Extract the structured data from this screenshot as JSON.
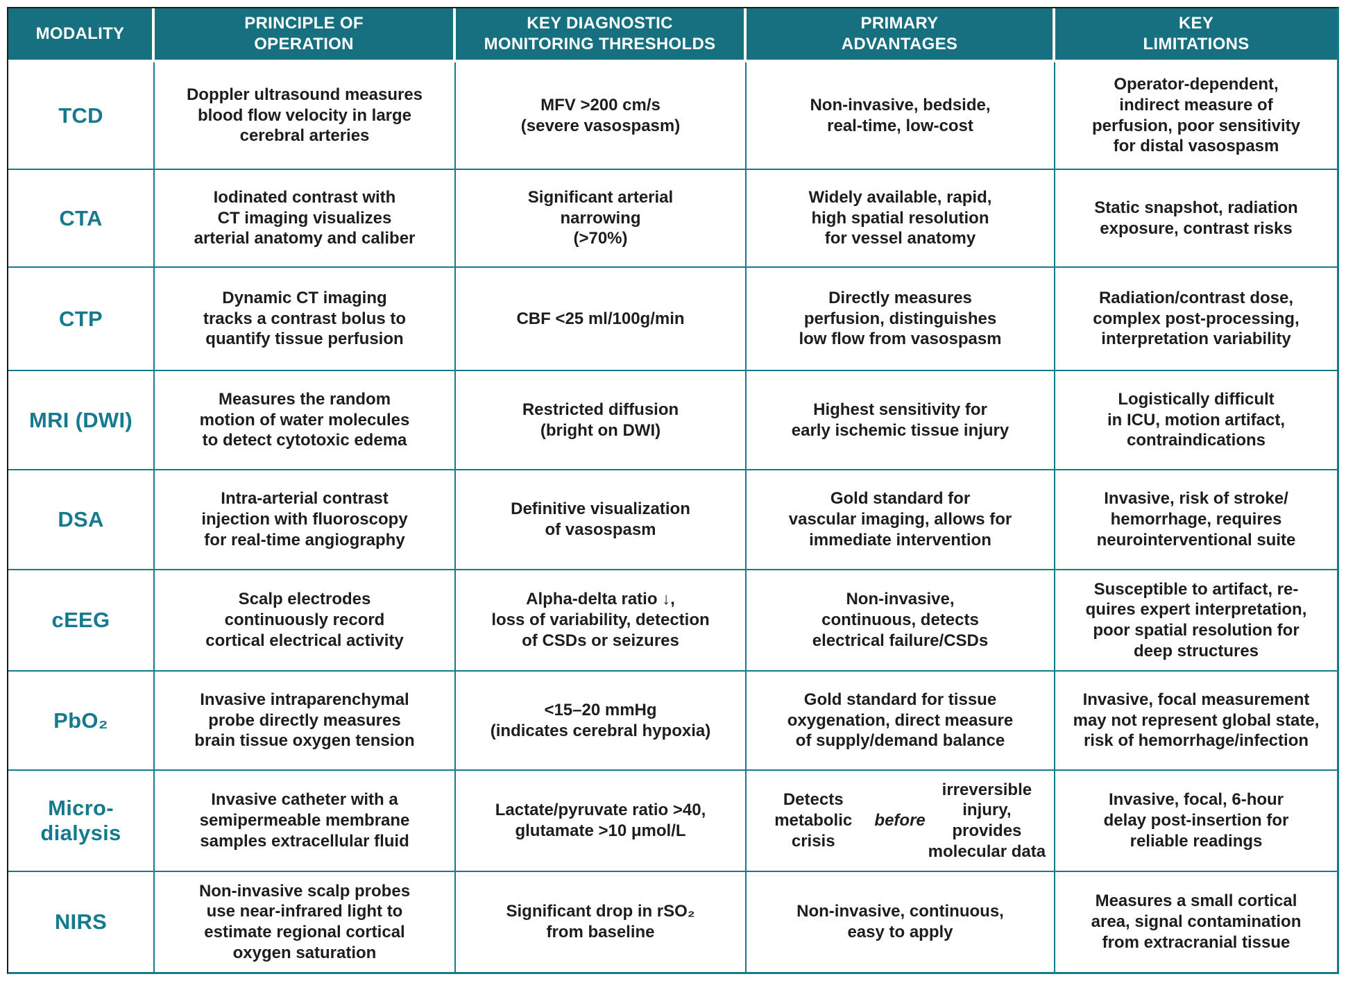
{
  "colors": {
    "header_bg": "#17707f",
    "grid_line": "#177a8a",
    "modality_text": "#157a8e",
    "body_text": "#1d1d1d",
    "header_text": "#ffffff"
  },
  "table": {
    "columns": [
      {
        "label": "MODALITY"
      },
      {
        "label": "PRINCIPLE OF\nOPERATION"
      },
      {
        "label": "KEY DIAGNOSTIC\nMONITORING THRESHOLDS"
      },
      {
        "label": "PRIMARY\nADVANTAGES"
      },
      {
        "label": "KEY\nLIMITATIONS"
      }
    ],
    "rows": [
      {
        "modality": "TCD",
        "principle": "Doppler ultrasound measures\nblood flow velocity in large\ncerebral arteries",
        "threshold": "MFV >200 cm/s\n(severe vasospasm)",
        "advantages": "Non-invasive, bedside,\nreal-time, low-cost",
        "limitations": "Operator-dependent,\nindirect measure of\nperfusion, poor sensitivity\nfor distal vasospasm"
      },
      {
        "modality": "CTA",
        "principle": "Iodinated contrast with\nCT imaging visualizes\narterial anatomy and caliber",
        "threshold": "Significant arterial\nnarrowing\n(>70%)",
        "advantages": "Widely available, rapid,\nhigh spatial resolution\nfor vessel anatomy",
        "limitations": "Static snapshot, radiation\nexposure, contrast risks"
      },
      {
        "modality": "CTP",
        "principle": "Dynamic CT imaging\ntracks a contrast bolus to\nquantify tissue perfusion",
        "threshold": "CBF <25 ml/100g/min",
        "advantages": "Directly measures\nperfusion, distinguishes\nlow flow from vasospasm",
        "limitations": "Radiation/contrast dose,\ncomplex post-processing,\ninterpretation variability"
      },
      {
        "modality": "MRI (DWI)",
        "principle": "Measures the random\nmotion of water molecules\nto detect cytotoxic edema",
        "threshold": "Restricted diffusion\n(bright on DWI)",
        "advantages": "Highest sensitivity for\nearly ischemic tissue injury",
        "limitations": "Logistically difficult\nin ICU, motion artifact,\ncontraindications"
      },
      {
        "modality": "DSA",
        "principle": "Intra-arterial contrast\ninjection with fluoroscopy\nfor real-time angiography",
        "threshold": "Definitive visualization\nof vasospasm",
        "advantages": "Gold standard for\nvascular imaging, allows for\nimmediate intervention",
        "limitations": "Invasive, risk of stroke/\nhemorrhage, requires\nneurointerventional suite"
      },
      {
        "modality": "cEEG",
        "principle": "Scalp electrodes\ncontinuously record\ncortical electrical activity",
        "threshold": "Alpha-delta ratio ↓,\nloss of variability, detection\nof CSDs or seizures",
        "advantages": "Non-invasive,\ncontinuous, detects\nelectrical failure/CSDs",
        "limitations": "Susceptible to artifact, re-\nquires expert interpretation,\npoor spatial resolution for\ndeep structures"
      },
      {
        "modality": "PbO₂",
        "principle": "Invasive intraparenchymal\nprobe directly measures\nbrain tissue oxygen tension",
        "threshold": "<15–20 mmHg\n(indicates cerebral hypoxia)",
        "advantages": "Gold standard for tissue\noxygenation, direct measure\nof supply/demand balance",
        "limitations": "Invasive, focal measurement\nmay not represent global state,\nrisk of hemorrhage/infection"
      },
      {
        "modality": "Micro-\ndialysis",
        "principle": "Invasive catheter with a\nsemipermeable membrane\nsamples extracellular fluid",
        "threshold": "Lactate/pyruvate ratio >40,\nglutamate >10 μmol/L",
        "advantages_html": "Detects metabolic crisis\n<i>before</i> irreversible injury,\nprovides molecular data",
        "limitations": "Invasive, focal, 6-hour\ndelay post-insertion for\nreliable readings"
      },
      {
        "modality": "NIRS",
        "principle": "Non-invasive scalp probes\nuse near-infrared light to\nestimate regional cortical\noxygen saturation",
        "threshold": "Significant drop in rSO₂\nfrom baseline",
        "advantages": "Non-invasive, continuous,\neasy to apply",
        "limitations": "Measures a small cortical\narea, signal contamination\nfrom extracranial tissue"
      }
    ]
  }
}
